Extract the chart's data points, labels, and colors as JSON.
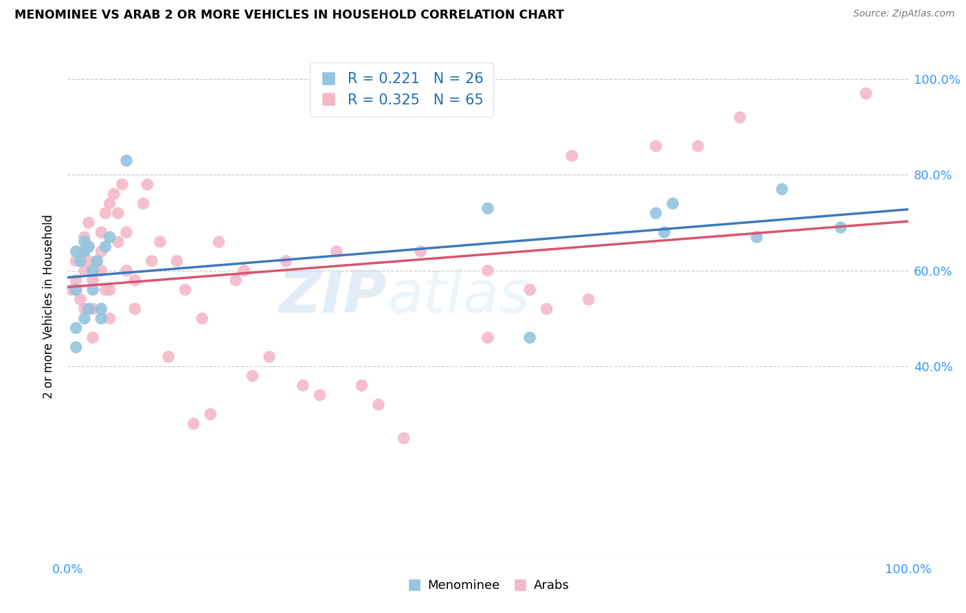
{
  "title": "MENOMINEE VS ARAB 2 OR MORE VEHICLES IN HOUSEHOLD CORRELATION CHART",
  "source": "Source: ZipAtlas.com",
  "ylabel": "2 or more Vehicles in Household",
  "menominee_R": 0.221,
  "menominee_N": 26,
  "arab_R": 0.325,
  "arab_N": 65,
  "watermark_text": "ZIP",
  "watermark_text2": "atlas",
  "blue_color": "#92c5de",
  "pink_color": "#f4b8c8",
  "blue_line_color": "#3a7abf",
  "pink_line_color": "#d9546e",
  "legend_R_color": "#1a6fbd",
  "menominee_x": [
    0.01,
    0.01,
    0.01,
    0.01,
    0.015,
    0.02,
    0.02,
    0.02,
    0.025,
    0.025,
    0.03,
    0.03,
    0.035,
    0.04,
    0.04,
    0.045,
    0.05,
    0.07,
    0.5,
    0.55,
    0.7,
    0.71,
    0.72,
    0.82,
    0.85,
    0.92
  ],
  "menominee_y": [
    0.44,
    0.48,
    0.56,
    0.64,
    0.62,
    0.5,
    0.64,
    0.66,
    0.52,
    0.65,
    0.56,
    0.6,
    0.62,
    0.5,
    0.52,
    0.65,
    0.67,
    0.83,
    0.73,
    0.46,
    0.72,
    0.68,
    0.74,
    0.67,
    0.77,
    0.69
  ],
  "arab_x": [
    0.005,
    0.01,
    0.01,
    0.01,
    0.015,
    0.02,
    0.02,
    0.02,
    0.02,
    0.025,
    0.025,
    0.025,
    0.03,
    0.03,
    0.03,
    0.035,
    0.04,
    0.04,
    0.04,
    0.045,
    0.045,
    0.05,
    0.05,
    0.05,
    0.055,
    0.06,
    0.06,
    0.065,
    0.07,
    0.07,
    0.08,
    0.08,
    0.09,
    0.095,
    0.1,
    0.11,
    0.12,
    0.13,
    0.14,
    0.15,
    0.16,
    0.17,
    0.18,
    0.2,
    0.21,
    0.22,
    0.24,
    0.26,
    0.28,
    0.3,
    0.32,
    0.35,
    0.37,
    0.4,
    0.42,
    0.5,
    0.5,
    0.55,
    0.57,
    0.6,
    0.62,
    0.7,
    0.75,
    0.8,
    0.95
  ],
  "arab_y": [
    0.56,
    0.58,
    0.62,
    0.56,
    0.54,
    0.52,
    0.6,
    0.64,
    0.67,
    0.62,
    0.65,
    0.7,
    0.46,
    0.52,
    0.58,
    0.62,
    0.6,
    0.64,
    0.68,
    0.56,
    0.72,
    0.5,
    0.56,
    0.74,
    0.76,
    0.66,
    0.72,
    0.78,
    0.6,
    0.68,
    0.52,
    0.58,
    0.74,
    0.78,
    0.62,
    0.66,
    0.42,
    0.62,
    0.56,
    0.28,
    0.5,
    0.3,
    0.66,
    0.58,
    0.6,
    0.38,
    0.42,
    0.62,
    0.36,
    0.34,
    0.64,
    0.36,
    0.32,
    0.25,
    0.64,
    0.46,
    0.6,
    0.56,
    0.52,
    0.84,
    0.54,
    0.86,
    0.86,
    0.92,
    0.97
  ],
  "xlim": [
    0.0,
    1.0
  ],
  "ylim": [
    0.0,
    1.05
  ],
  "ytick_vals": [
    0.4,
    0.6,
    0.8,
    1.0
  ],
  "ytick_labels": [
    "40.0%",
    "60.0%",
    "80.0%",
    "100.0%"
  ],
  "xtick_vals": [
    0.0,
    1.0
  ],
  "xtick_labels": [
    "0.0%",
    "100.0%"
  ],
  "background_color": "#ffffff",
  "grid_color": "#cccccc",
  "tick_color": "#3399ff"
}
